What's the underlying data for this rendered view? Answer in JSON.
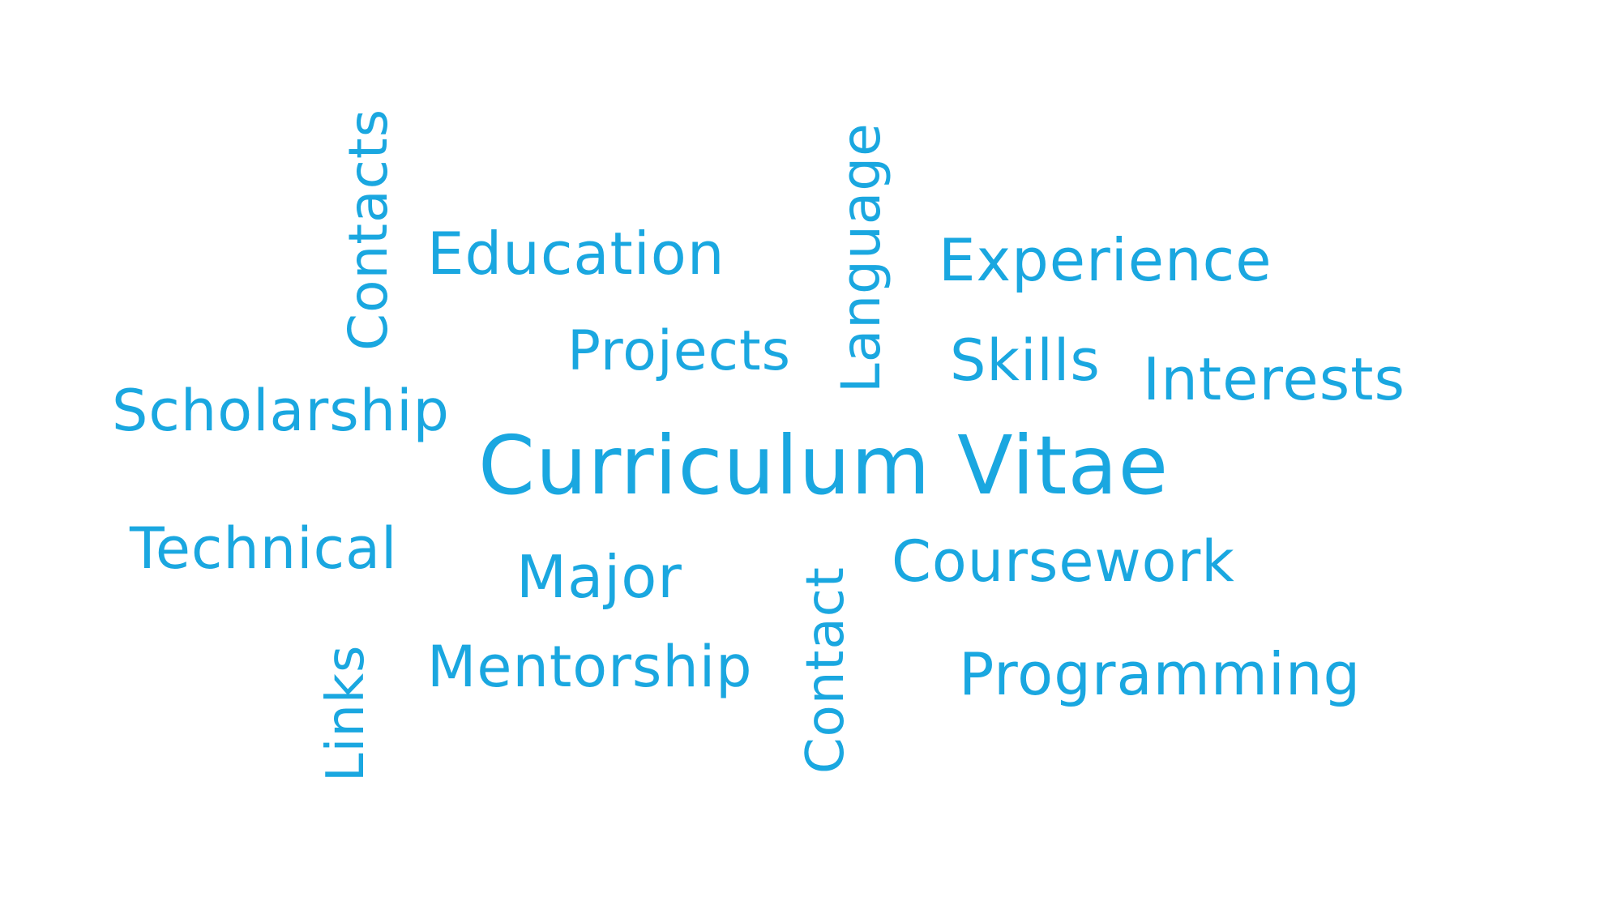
{
  "theme": {
    "background": "#ffffff",
    "text_color": "#1aa7e0"
  },
  "word_cloud": {
    "main_title": "Curriculum Vitae",
    "words": {
      "education": "Education",
      "experience": "Experience",
      "projects": "Projects",
      "skills": "Skills",
      "interests": "Interests",
      "scholarship": "Scholarship",
      "technical": "Technical",
      "major": "Major",
      "coursework": "Coursework",
      "mentorship": "Mentorship",
      "programming": "Programming",
      "contacts": "Contacts",
      "language": "Language",
      "links": "Links",
      "contact": "Contact"
    }
  }
}
